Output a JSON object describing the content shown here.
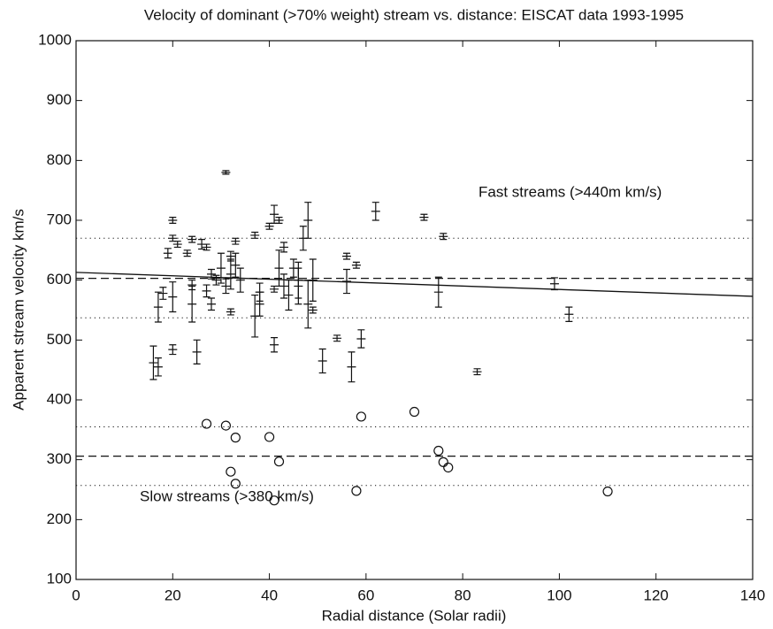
{
  "chart_data": {
    "type": "scatter",
    "title": "Velocity of dominant (>70% weight) stream vs. distance: EISCAT data 1993-1995",
    "x_label": "Radial distance (Solar radii)",
    "y_label": "Apparent stream velocity km/s",
    "xlim": [
      0,
      140
    ],
    "ylim": [
      100,
      1000
    ],
    "xticks": [
      0,
      20,
      40,
      60,
      80,
      100,
      120,
      140
    ],
    "yticks": [
      100,
      200,
      300,
      400,
      500,
      600,
      700,
      800,
      900,
      1000
    ],
    "color": "#111111",
    "annotations": [
      "Fast streams (>440m km/s)",
      "Slow streams (>380 km/s)"
    ],
    "fast": {
      "x": [
        16,
        17,
        17,
        18,
        20,
        19,
        20,
        20,
        21,
        20,
        23,
        24,
        24,
        24,
        25,
        26,
        27,
        27,
        28,
        28,
        29,
        30,
        31,
        31,
        32,
        32,
        32,
        33,
        33,
        34,
        37,
        37,
        38,
        38,
        40,
        41,
        41,
        41,
        42,
        42,
        43,
        43,
        44,
        45,
        46,
        46,
        47,
        48,
        48,
        49,
        49,
        51,
        54,
        56,
        56,
        57,
        58,
        59,
        62,
        72,
        75,
        76,
        83,
        99,
        102
      ],
      "y": [
        462,
        455,
        555,
        578,
        572,
        645,
        700,
        670,
        660,
        484,
        645,
        668,
        592,
        560,
        480,
        660,
        655,
        582,
        610,
        560,
        600,
        620,
        780,
        590,
        610,
        640,
        547,
        625,
        665,
        600,
        540,
        675,
        580,
        560,
        690,
        710,
        492,
        585,
        700,
        620,
        655,
        590,
        575,
        620,
        590,
        600,
        670,
        700,
        560,
        600,
        550,
        465,
        503,
        598,
        640,
        455,
        625,
        502,
        715,
        705,
        580,
        673,
        447,
        594,
        543
      ],
      "err": [
        28,
        15,
        25,
        10,
        25,
        8,
        5,
        5,
        5,
        8,
        5,
        5,
        8,
        30,
        20,
        8,
        5,
        10,
        8,
        10,
        8,
        25,
        3,
        12,
        25,
        8,
        5,
        20,
        5,
        20,
        35,
        5,
        15,
        20,
        5,
        15,
        12,
        5,
        5,
        30,
        8,
        20,
        25,
        15,
        30,
        30,
        20,
        30,
        40,
        35,
        5,
        20,
        5,
        20,
        5,
        25,
        5,
        15,
        15,
        5,
        25,
        5,
        5,
        10,
        12
      ]
    },
    "slow": {
      "x": [
        27,
        31,
        32,
        33,
        33,
        40,
        41,
        42,
        58,
        59,
        70,
        75,
        76,
        77,
        110
      ],
      "y": [
        360,
        357,
        280,
        337,
        260,
        338,
        232,
        297,
        248,
        372,
        380,
        315,
        296,
        287,
        247
      ]
    },
    "fit_line": {
      "x": [
        0,
        140
      ],
      "y": [
        613,
        573
      ]
    },
    "dashed_levels": [
      603,
      306
    ],
    "dotted_levels": [
      670,
      537,
      355,
      257
    ]
  }
}
